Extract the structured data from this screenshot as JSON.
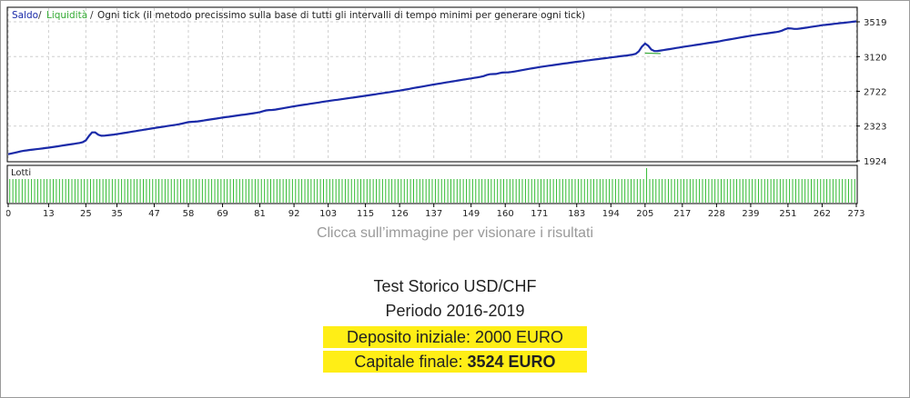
{
  "chart_data": {
    "type": "line",
    "legend": {
      "balance": "Saldo",
      "equity": "Liquidità",
      "description": "Ogni tick (il metodo precissimo sulla base di tutti gli intervalli di tempo minimi per generare ogni tick)"
    },
    "y_ticks": [
      1924,
      2323,
      2722,
      3120,
      3519
    ],
    "ylim": [
      1924,
      3519
    ],
    "xlim": [
      0,
      273
    ],
    "x_ticks": [
      0,
      13,
      25,
      35,
      47,
      58,
      69,
      81,
      92,
      103,
      115,
      126,
      137,
      149,
      160,
      171,
      183,
      194,
      205,
      217,
      228,
      239,
      251,
      262,
      273
    ],
    "series": [
      {
        "name": "Saldo",
        "color": "#1a2aa8",
        "x": [
          0,
          5,
          13,
          25,
          28,
          35,
          47,
          58,
          69,
          81,
          92,
          103,
          115,
          126,
          137,
          149,
          160,
          171,
          183,
          194,
          205,
          217,
          228,
          239,
          251,
          262,
          273
        ],
        "y": [
          2000,
          2040,
          2075,
          2140,
          2200,
          2230,
          2300,
          2360,
          2420,
          2480,
          2550,
          2610,
          2670,
          2730,
          2800,
          2870,
          2930,
          3000,
          3060,
          3110,
          3160,
          3230,
          3290,
          3360,
          3420,
          3480,
          3524
        ]
      }
    ],
    "lots_panel": {
      "label": "Lotti",
      "color": "#33bb33",
      "bars": 273,
      "spike_at": 205
    }
  },
  "caption": "Clicca sull’immagine per visionare i risultati",
  "info": {
    "title": "Test Storico USD/CHF",
    "period": "Periodo 2016-2019",
    "deposit": "Deposito iniziale: 2000 EURO",
    "final_label": "Capitale finale: ",
    "final_value": "3524 EURO"
  },
  "colors": {
    "highlight": "#ffee16",
    "grid": "#cfcfcf"
  }
}
